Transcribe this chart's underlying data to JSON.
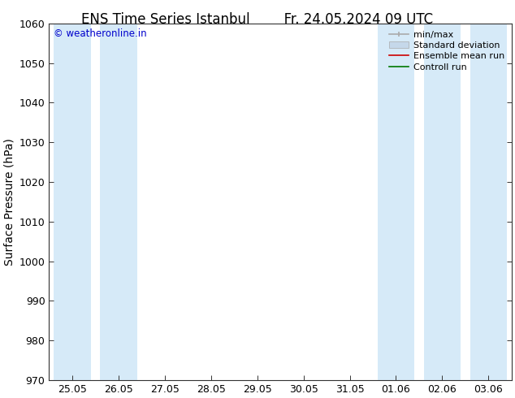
{
  "title_left": "ENS Time Series Istanbul",
  "title_right": "Fr. 24.05.2024 09 UTC",
  "ylabel": "Surface Pressure (hPa)",
  "ylim": [
    970,
    1060
  ],
  "yticks": [
    970,
    980,
    990,
    1000,
    1010,
    1020,
    1030,
    1040,
    1050,
    1060
  ],
  "xtick_labels": [
    "25.05",
    "26.05",
    "27.05",
    "28.05",
    "29.05",
    "30.05",
    "31.05",
    "01.06",
    "02.06",
    "03.06"
  ],
  "watermark": "© weatheronline.in",
  "watermark_color": "#0000cc",
  "bg_color": "#ffffff",
  "plot_bg_color": "#ffffff",
  "band_color": "#d6eaf8",
  "shaded_x": [
    0,
    1,
    7,
    8,
    9
  ],
  "legend_minmax_color": "#aaaaaa",
  "legend_std_color": "#c5d8ea",
  "legend_ens_color": "#cc0000",
  "legend_ctrl_color": "#007700",
  "title_fontsize": 12,
  "label_fontsize": 10,
  "tick_fontsize": 9,
  "legend_fontsize": 8,
  "spine_color": "#333333"
}
